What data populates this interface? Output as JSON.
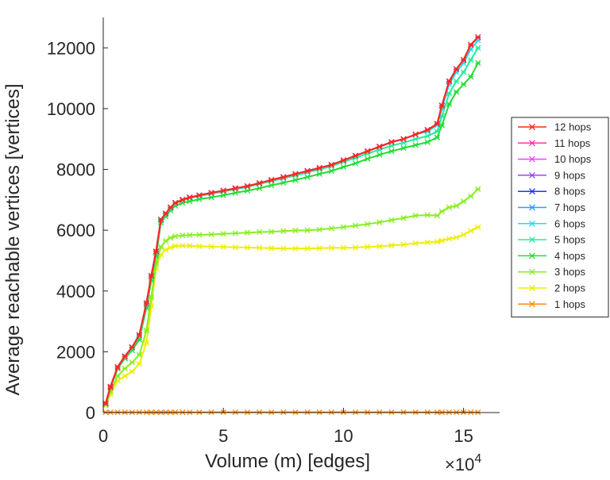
{
  "chart_data": {
    "type": "line",
    "title": "",
    "xlabel": "Volume (m) [edges]",
    "ylabel": "Average reachable vertices [vertices]",
    "x_multiplier_label": "×10",
    "x_multiplier_exponent": "4",
    "xlim": [
      0,
      16.5
    ],
    "ylim": [
      0,
      13000
    ],
    "x_unit_scale": 10000,
    "xticks": [
      0,
      5,
      10,
      15
    ],
    "xtick_labels": [
      "0",
      "5",
      "10",
      "15"
    ],
    "yticks": [
      0,
      2000,
      4000,
      6000,
      8000,
      10000,
      12000
    ],
    "ytick_labels": [
      "0",
      "2000",
      "4000",
      "6000",
      "8000",
      "10000",
      "12000"
    ],
    "grid": false,
    "legend_position": "right",
    "x": [
      0.1,
      0.3,
      0.6,
      0.9,
      1.2,
      1.5,
      1.8,
      2.0,
      2.2,
      2.4,
      2.6,
      2.8,
      3.0,
      3.3,
      3.6,
      4.0,
      4.5,
      5.0,
      5.5,
      6.0,
      6.5,
      7.0,
      7.5,
      8.0,
      8.5,
      9.0,
      9.5,
      10.0,
      10.5,
      11.0,
      11.5,
      12.0,
      12.5,
      13.0,
      13.5,
      13.9,
      14.1,
      14.4,
      14.7,
      15.0,
      15.3,
      15.6
    ],
    "series": [
      {
        "name": "12 hops",
        "color": "#ff2a1a",
        "values": [
          300,
          850,
          1500,
          1850,
          2150,
          2550,
          3600,
          4500,
          5300,
          6350,
          6550,
          6750,
          6900,
          7000,
          7080,
          7150,
          7230,
          7300,
          7380,
          7450,
          7550,
          7650,
          7750,
          7850,
          7950,
          8050,
          8150,
          8300,
          8450,
          8600,
          8750,
          8900,
          9000,
          9150,
          9300,
          9500,
          10100,
          10900,
          11300,
          11600,
          12100,
          12350
        ]
      },
      {
        "name": "11 hops",
        "color": "#ff33aa",
        "values": [
          300,
          850,
          1500,
          1850,
          2150,
          2550,
          3600,
          4500,
          5300,
          6350,
          6550,
          6750,
          6900,
          7000,
          7080,
          7150,
          7230,
          7300,
          7380,
          7450,
          7550,
          7650,
          7750,
          7850,
          7950,
          8050,
          8150,
          8300,
          8450,
          8600,
          8750,
          8900,
          9000,
          9150,
          9300,
          9500,
          10100,
          10900,
          11300,
          11600,
          12100,
          12350
        ]
      },
      {
        "name": "10 hops",
        "color": "#ee44ff",
        "values": [
          300,
          850,
          1500,
          1850,
          2150,
          2550,
          3600,
          4500,
          5300,
          6350,
          6550,
          6750,
          6900,
          7000,
          7080,
          7150,
          7230,
          7300,
          7380,
          7450,
          7550,
          7650,
          7750,
          7850,
          7950,
          8050,
          8150,
          8300,
          8450,
          8600,
          8750,
          8900,
          9000,
          9150,
          9300,
          9500,
          10100,
          10900,
          11300,
          11600,
          12100,
          12350
        ]
      },
      {
        "name": "9 hops",
        "color": "#9944ff",
        "values": [
          300,
          850,
          1500,
          1850,
          2150,
          2550,
          3600,
          4500,
          5300,
          6350,
          6550,
          6750,
          6900,
          7000,
          7080,
          7150,
          7230,
          7300,
          7380,
          7450,
          7550,
          7650,
          7750,
          7850,
          7950,
          8050,
          8150,
          8300,
          8450,
          8600,
          8750,
          8900,
          9000,
          9150,
          9300,
          9500,
          10100,
          10900,
          11300,
          11600,
          12100,
          12350
        ]
      },
      {
        "name": "8 hops",
        "color": "#2233ff",
        "values": [
          300,
          850,
          1500,
          1850,
          2150,
          2550,
          3600,
          4500,
          5300,
          6350,
          6550,
          6750,
          6900,
          7000,
          7080,
          7150,
          7230,
          7300,
          7380,
          7450,
          7550,
          7650,
          7750,
          7850,
          7950,
          8050,
          8150,
          8300,
          8450,
          8600,
          8750,
          8900,
          9000,
          9150,
          9300,
          9500,
          10100,
          10900,
          11300,
          11600,
          12100,
          12350
        ]
      },
      {
        "name": "7 hops",
        "color": "#3399ff",
        "values": [
          300,
          850,
          1500,
          1850,
          2150,
          2550,
          3600,
          4500,
          5300,
          6350,
          6550,
          6750,
          6900,
          7000,
          7080,
          7150,
          7230,
          7300,
          7380,
          7450,
          7550,
          7650,
          7750,
          7850,
          7950,
          8050,
          8150,
          8300,
          8450,
          8600,
          8750,
          8900,
          9000,
          9150,
          9300,
          9500,
          10100,
          10900,
          11300,
          11600,
          12100,
          12350
        ]
      },
      {
        "name": "6 hops",
        "color": "#22ddee",
        "values": [
          300,
          850,
          1500,
          1850,
          2150,
          2550,
          3600,
          4500,
          5300,
          6350,
          6550,
          6750,
          6900,
          7000,
          7080,
          7150,
          7230,
          7300,
          7380,
          7450,
          7550,
          7650,
          7750,
          7850,
          7950,
          8050,
          8150,
          8300,
          8450,
          8600,
          8750,
          8900,
          9000,
          9150,
          9250,
          9450,
          10000,
          10800,
          11200,
          11500,
          11950,
          12250
        ]
      },
      {
        "name": "5 hops",
        "color": "#22ee99",
        "values": [
          300,
          850,
          1500,
          1820,
          2120,
          2500,
          3550,
          4450,
          5250,
          6320,
          6520,
          6720,
          6880,
          6980,
          7050,
          7120,
          7200,
          7270,
          7350,
          7420,
          7520,
          7620,
          7700,
          7800,
          7900,
          8000,
          8100,
          8250,
          8380,
          8520,
          8650,
          8780,
          8880,
          9000,
          9100,
          9250,
          9750,
          10500,
          10900,
          11200,
          11600,
          12000
        ]
      },
      {
        "name": "4 hops",
        "color": "#22dd33",
        "values": [
          280,
          820,
          1450,
          1780,
          2050,
          2400,
          3450,
          4350,
          5150,
          6250,
          6450,
          6650,
          6800,
          6900,
          6950,
          7020,
          7080,
          7150,
          7230,
          7300,
          7380,
          7480,
          7560,
          7650,
          7750,
          7850,
          7950,
          8080,
          8200,
          8350,
          8480,
          8600,
          8700,
          8800,
          8900,
          9050,
          9450,
          10150,
          10550,
          10800,
          11050,
          11500
        ]
      },
      {
        "name": "3 hops",
        "color": "#88ee22",
        "values": [
          250,
          700,
          1200,
          1450,
          1650,
          1900,
          2700,
          3800,
          4900,
          5450,
          5650,
          5750,
          5800,
          5830,
          5840,
          5850,
          5860,
          5880,
          5900,
          5920,
          5940,
          5950,
          5970,
          5990,
          6000,
          6020,
          6060,
          6100,
          6150,
          6200,
          6260,
          6330,
          6400,
          6480,
          6500,
          6480,
          6620,
          6750,
          6800,
          6950,
          7120,
          7350
        ]
      },
      {
        "name": "2 hops",
        "color": "#eeee00",
        "values": [
          230,
          600,
          1050,
          1200,
          1350,
          1600,
          2300,
          3500,
          4750,
          5200,
          5350,
          5430,
          5480,
          5490,
          5490,
          5470,
          5460,
          5450,
          5440,
          5430,
          5420,
          5410,
          5400,
          5400,
          5400,
          5410,
          5420,
          5420,
          5430,
          5450,
          5470,
          5500,
          5530,
          5570,
          5600,
          5620,
          5660,
          5720,
          5760,
          5850,
          5980,
          6100
        ]
      },
      {
        "name": "1 hops",
        "color": "#ff8811",
        "values": [
          10,
          10,
          10,
          10,
          10,
          10,
          10,
          10,
          10,
          10,
          10,
          10,
          10,
          10,
          10,
          10,
          10,
          10,
          10,
          10,
          10,
          10,
          10,
          10,
          10,
          10,
          10,
          10,
          10,
          10,
          10,
          10,
          10,
          10,
          10,
          10,
          10,
          10,
          10,
          10,
          10,
          10
        ]
      }
    ]
  }
}
